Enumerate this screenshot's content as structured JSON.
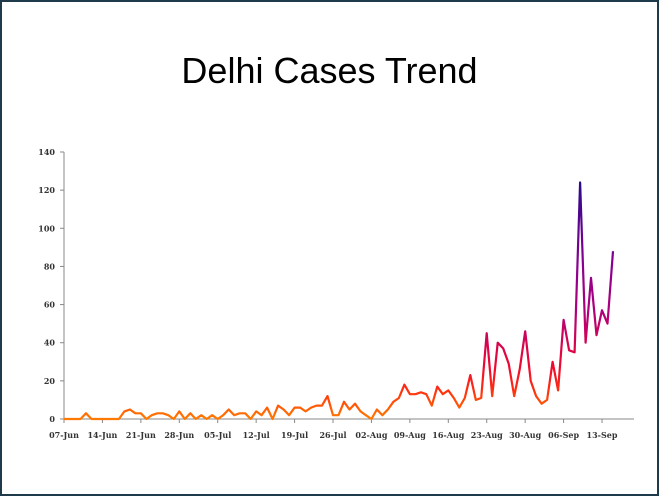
{
  "chart_data": {
    "type": "line",
    "title": "Delhi Cases Trend",
    "xlabel": "",
    "ylabel": "",
    "ylim": [
      0,
      140
    ],
    "yticks": [
      0,
      20,
      40,
      60,
      80,
      100,
      120,
      140
    ],
    "x_start": "07-Jun",
    "x_tick_labels": [
      "07-Jun",
      "14-Jun",
      "21-Jun",
      "28-Jun",
      "05-Jul",
      "12-Jul",
      "19-Jul",
      "26-Jul",
      "02-Aug",
      "09-Aug",
      "16-Aug",
      "23-Aug",
      "30-Aug",
      "06-Sep",
      "13-Sep"
    ],
    "x_tick_interval_days": 7,
    "x_days_total": 104,
    "grid": false,
    "legend": "none",
    "series": [
      {
        "name": "Cases",
        "values": [
          0,
          0,
          0,
          0,
          3,
          0,
          0,
          0,
          0,
          0,
          0,
          4,
          5,
          3,
          3,
          0,
          2,
          3,
          3,
          2,
          0,
          4,
          0,
          3,
          0,
          2,
          0,
          2,
          0,
          2,
          5,
          2,
          3,
          3,
          0,
          4,
          2,
          6,
          0,
          7,
          5,
          2,
          6,
          6,
          4,
          6,
          7,
          7,
          12,
          2,
          2,
          9,
          5,
          8,
          4,
          2,
          0,
          5,
          2,
          5,
          9,
          11,
          18,
          13,
          13,
          14,
          13,
          7,
          17,
          13,
          15,
          11,
          6,
          11,
          23,
          10,
          11,
          45,
          12,
          40,
          37,
          29,
          12,
          26,
          46,
          20,
          12,
          8,
          10,
          30,
          15,
          52,
          36,
          35,
          124,
          40,
          74,
          44,
          57,
          50,
          88
        ]
      }
    ],
    "colors": {
      "low": "#ff7a00",
      "mid": "#ff1020",
      "high": "#b0007a",
      "peak": "#2a0a8c",
      "frame": "#1f3a4a"
    }
  }
}
